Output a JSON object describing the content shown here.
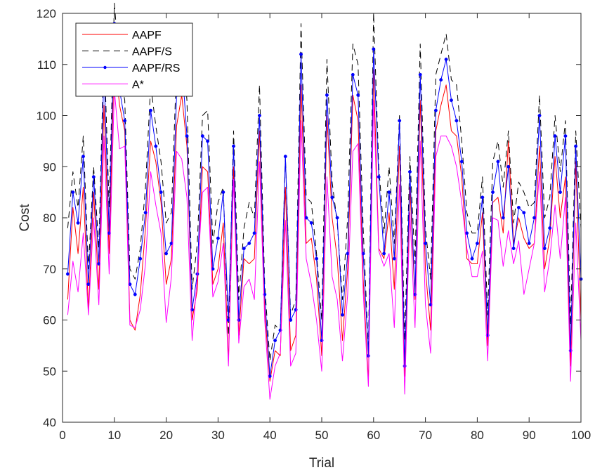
{
  "chart_data": {
    "type": "line",
    "xlabel": "Trial",
    "ylabel": "Cost",
    "xlim": [
      0,
      100
    ],
    "ylim": [
      40,
      120
    ],
    "xticks": [
      0,
      10,
      20,
      30,
      40,
      50,
      60,
      70,
      80,
      90,
      100
    ],
    "yticks": [
      40,
      50,
      60,
      70,
      80,
      90,
      100,
      110,
      120
    ],
    "grid": false,
    "legend_position": "top-left",
    "x": [
      1,
      2,
      3,
      4,
      5,
      6,
      7,
      8,
      9,
      10,
      11,
      12,
      13,
      14,
      15,
      16,
      17,
      18,
      19,
      20,
      21,
      22,
      23,
      24,
      25,
      26,
      27,
      28,
      29,
      30,
      31,
      32,
      33,
      34,
      35,
      36,
      37,
      38,
      39,
      40,
      41,
      42,
      43,
      44,
      45,
      46,
      47,
      48,
      49,
      50,
      51,
      52,
      53,
      54,
      55,
      56,
      57,
      58,
      59,
      60,
      61,
      62,
      63,
      64,
      65,
      66,
      67,
      68,
      69,
      70,
      71,
      72,
      73,
      74,
      75,
      76,
      77,
      78,
      79,
      80,
      81,
      82,
      83,
      84,
      85,
      86,
      87,
      88,
      89,
      90,
      91,
      92,
      93,
      94,
      95,
      96,
      97,
      98,
      99,
      100
    ],
    "series": [
      {
        "name": "AAPF",
        "color": "#ff0000",
        "dash": "",
        "marker": false,
        "values": [
          64,
          82,
          73,
          86,
          62,
          85,
          66,
          102,
          73,
          112,
          102,
          97,
          60,
          58,
          65,
          78,
          95,
          91,
          83,
          67,
          72,
          98,
          104,
          94,
          60,
          66,
          90,
          89,
          67,
          70,
          79,
          52,
          90,
          57,
          72,
          71,
          72,
          97,
          62,
          48,
          54,
          53,
          86,
          54,
          57,
          106,
          75,
          76,
          68,
          53,
          100,
          80,
          72,
          56,
          70,
          104,
          99,
          68,
          48,
          109,
          74,
          72,
          81,
          66,
          94,
          49,
          86,
          64,
          103,
          70,
          58,
          97,
          102,
          106,
          97,
          96,
          88,
          72,
          71,
          71,
          81,
          55,
          83,
          84,
          77,
          95,
          75,
          80,
          76,
          74,
          75,
          94,
          70,
          76,
          92,
          80,
          88,
          51,
          91,
          60
        ]
      },
      {
        "name": "AAPF/S",
        "color": "#000000",
        "dash": "9,6",
        "marker": false,
        "values": [
          78,
          89,
          82,
          96,
          70,
          90,
          74,
          114,
          82,
          122,
          109,
          103,
          70,
          68,
          74,
          86,
          106,
          98,
          91,
          79,
          81,
          110,
          116,
          103,
          66,
          75,
          100,
          101,
          75,
          83,
          86,
          57,
          97,
          64,
          78,
          83,
          80,
          106,
          67,
          52,
          59,
          58,
          92,
          61,
          64,
          118,
          84,
          83,
          73,
          60,
          111,
          87,
          79,
          64,
          80,
          114,
          110,
          78,
          54,
          120,
          90,
          77,
          90,
          75,
          100,
          56,
          92,
          71,
          114,
          78,
          68,
          108,
          112,
          116,
          107,
          106,
          95,
          81,
          77,
          77,
          88,
          61,
          91,
          95,
          86,
          97,
          79,
          87,
          85,
          82,
          83,
          104,
          80,
          84,
          100,
          89,
          99,
          59,
          97,
          78
        ]
      },
      {
        "name": "AAPF/RS",
        "color": "#0000ff",
        "dash": "",
        "marker": true,
        "values": [
          69,
          85,
          79,
          92,
          67,
          88,
          71,
          109,
          77,
          118,
          105,
          99,
          67,
          65,
          72,
          81,
          101,
          94,
          85,
          73,
          75,
          104,
          111,
          96,
          62,
          69,
          96,
          95,
          70,
          76,
          85,
          60,
          94,
          60,
          74,
          75,
          77,
          100,
          65,
          49,
          56,
          58,
          92,
          60,
          62,
          112,
          80,
          79,
          72,
          56,
          104,
          84,
          80,
          61,
          73,
          108,
          104,
          73,
          53,
          113,
          88,
          73,
          85,
          72,
          99,
          51,
          89,
          65,
          108,
          75,
          63,
          101,
          107,
          111,
          103,
          99,
          91,
          77,
          72,
          75,
          84,
          57,
          85,
          91,
          80,
          90,
          74,
          82,
          81,
          75,
          80,
          100,
          74,
          78,
          96,
          85,
          96,
          54,
          94,
          68
        ]
      },
      {
        "name": "A*",
        "color": "#ff00ff",
        "dash": "",
        "marker": false,
        "values": [
          61,
          71.5,
          65.5,
          77,
          61,
          80,
          63,
          96,
          69,
          105,
          93.5,
          94,
          59,
          58.5,
          62,
          71,
          89,
          82.5,
          77,
          59.5,
          68.5,
          93,
          91.5,
          84,
          56,
          68.5,
          85,
          86,
          64.5,
          67.5,
          75,
          51,
          87.5,
          55.5,
          66.5,
          68,
          64,
          91,
          60,
          44.5,
          51,
          53.5,
          79.5,
          51,
          53.5,
          99,
          72,
          67,
          60,
          50,
          88,
          68.5,
          64,
          52,
          65,
          93,
          94.5,
          65.5,
          47,
          103,
          73.5,
          70.5,
          73,
          58.5,
          86.5,
          45.5,
          81,
          58.5,
          95,
          63,
          53.5,
          92,
          96,
          96,
          94,
          90,
          83,
          74,
          68.5,
          68.5,
          73.5,
          52,
          80,
          79.5,
          70.5,
          77.5,
          71,
          75.5,
          65,
          70,
          75,
          89,
          65.5,
          72,
          82.5,
          72,
          84,
          48,
          79,
          56
        ]
      }
    ]
  }
}
